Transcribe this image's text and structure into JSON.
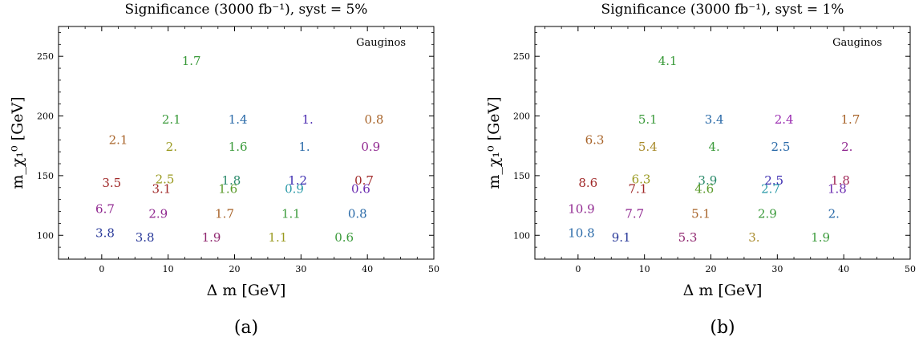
{
  "chart_data": [
    {
      "type": "scatter",
      "title": "Significance (3000 fb⁻¹), syst = 5%",
      "xlabel": "Δ m [GeV]",
      "ylabel": "m_χ₁⁰ [GeV]",
      "annotation": "Gauginos",
      "caption": "(a)",
      "xlim": [
        -6.5,
        50
      ],
      "ylim": [
        80,
        275
      ],
      "xticks": [
        "0",
        "10",
        "20",
        "30",
        "40",
        "50"
      ],
      "yticks": [
        "100",
        "150",
        "200",
        "250"
      ],
      "grid": false,
      "points": [
        {
          "x": 13.5,
          "y": 246,
          "label": "1.7",
          "color": "#3a9a3a"
        },
        {
          "x": 2.5,
          "y": 180,
          "label": "2.1",
          "color": "#a8642a"
        },
        {
          "x": 1.5,
          "y": 144,
          "label": "3.5",
          "color": "#a02828"
        },
        {
          "x": 0.5,
          "y": 122,
          "label": "6.7",
          "color": "#902890"
        },
        {
          "x": 0.5,
          "y": 102,
          "label": "3.8",
          "color": "#2a3a9a"
        },
        {
          "x": 10.5,
          "y": 197,
          "label": "2.1",
          "color": "#3a9a3a"
        },
        {
          "x": 10.5,
          "y": 174,
          "label": "2.",
          "color": "#9a9a20"
        },
        {
          "x": 9.5,
          "y": 147,
          "label": "2.5",
          "color": "#9a9a20"
        },
        {
          "x": 9.0,
          "y": 139,
          "label": "3.1",
          "color": "#a02828"
        },
        {
          "x": 8.5,
          "y": 118,
          "label": "2.9",
          "color": "#902890"
        },
        {
          "x": 6.5,
          "y": 98,
          "label": "3.8",
          "color": "#2a3a9a"
        },
        {
          "x": 20.5,
          "y": 197,
          "label": "1.4",
          "color": "#2a6aa8"
        },
        {
          "x": 20.5,
          "y": 174,
          "label": "1.6",
          "color": "#3a9a3a"
        },
        {
          "x": 19.5,
          "y": 146,
          "label": "1.8",
          "color": "#2a8a6a"
        },
        {
          "x": 19.0,
          "y": 139,
          "label": "1.6",
          "color": "#5a9a2a"
        },
        {
          "x": 18.5,
          "y": 118,
          "label": "1.7",
          "color": "#a8642a"
        },
        {
          "x": 16.5,
          "y": 98,
          "label": "1.9",
          "color": "#902870"
        },
        {
          "x": 31.0,
          "y": 197,
          "label": "1.",
          "color": "#4a2ab0"
        },
        {
          "x": 30.5,
          "y": 174,
          "label": "1.",
          "color": "#2a6aa8"
        },
        {
          "x": 29.5,
          "y": 146,
          "label": "1.2",
          "color": "#3a2ab0"
        },
        {
          "x": 29.0,
          "y": 139,
          "label": "0.9",
          "color": "#2a9aa8"
        },
        {
          "x": 28.5,
          "y": 118,
          "label": "1.1",
          "color": "#3a9a3a"
        },
        {
          "x": 26.5,
          "y": 98,
          "label": "1.1",
          "color": "#9a9a20"
        },
        {
          "x": 41.0,
          "y": 197,
          "label": "0.8",
          "color": "#a8642a"
        },
        {
          "x": 40.5,
          "y": 174,
          "label": "0.9",
          "color": "#902890"
        },
        {
          "x": 39.5,
          "y": 146,
          "label": "0.7",
          "color": "#a02828"
        },
        {
          "x": 39.0,
          "y": 139,
          "label": "0.6",
          "color": "#6a2ab0"
        },
        {
          "x": 38.5,
          "y": 118,
          "label": "0.8",
          "color": "#2a6aa8"
        },
        {
          "x": 36.5,
          "y": 98,
          "label": "0.6",
          "color": "#3a9a3a"
        }
      ]
    },
    {
      "type": "scatter",
      "title": "Significance (3000 fb⁻¹), syst = 1%",
      "xlabel": "Δ m [GeV]",
      "ylabel": "m_χ₁⁰ [GeV]",
      "annotation": "Gauginos",
      "caption": "(b)",
      "xlim": [
        -6.5,
        50
      ],
      "ylim": [
        80,
        275
      ],
      "xticks": [
        "0",
        "10",
        "20",
        "30",
        "40",
        "50"
      ],
      "yticks": [
        "100",
        "150",
        "200",
        "250"
      ],
      "grid": false,
      "points": [
        {
          "x": 13.5,
          "y": 246,
          "label": "4.1",
          "color": "#3a9a3a"
        },
        {
          "x": 2.5,
          "y": 180,
          "label": "6.3",
          "color": "#a8642a"
        },
        {
          "x": 1.5,
          "y": 144,
          "label": "8.6",
          "color": "#a02828"
        },
        {
          "x": 0.5,
          "y": 122,
          "label": "10.9",
          "color": "#902890"
        },
        {
          "x": 0.5,
          "y": 102,
          "label": "10.8",
          "color": "#2a6aa8"
        },
        {
          "x": 10.5,
          "y": 197,
          "label": "5.1",
          "color": "#3a9a3a"
        },
        {
          "x": 10.5,
          "y": 174,
          "label": "5.4",
          "color": "#a88a2a"
        },
        {
          "x": 9.5,
          "y": 147,
          "label": "6.3",
          "color": "#9a9a20"
        },
        {
          "x": 9.0,
          "y": 139,
          "label": "7.1",
          "color": "#a02828"
        },
        {
          "x": 8.5,
          "y": 118,
          "label": "7.7",
          "color": "#902890"
        },
        {
          "x": 6.5,
          "y": 98,
          "label": "9.1",
          "color": "#2a3a9a"
        },
        {
          "x": 20.5,
          "y": 197,
          "label": "3.4",
          "color": "#2a6aa8"
        },
        {
          "x": 20.5,
          "y": 174,
          "label": "4.",
          "color": "#3a9a3a"
        },
        {
          "x": 19.5,
          "y": 146,
          "label": "3.9",
          "color": "#2a8a6a"
        },
        {
          "x": 19.0,
          "y": 139,
          "label": "4.6",
          "color": "#5a9a2a"
        },
        {
          "x": 18.5,
          "y": 118,
          "label": "5.1",
          "color": "#a8642a"
        },
        {
          "x": 16.5,
          "y": 98,
          "label": "5.3",
          "color": "#902870"
        },
        {
          "x": 31.0,
          "y": 197,
          "label": "2.4",
          "color": "#9a2ab0"
        },
        {
          "x": 30.5,
          "y": 174,
          "label": "2.5",
          "color": "#2a6aa8"
        },
        {
          "x": 29.5,
          "y": 146,
          "label": "2.5",
          "color": "#3a2ab0"
        },
        {
          "x": 29.0,
          "y": 139,
          "label": "2.7",
          "color": "#2a9aa8"
        },
        {
          "x": 28.5,
          "y": 118,
          "label": "2.9",
          "color": "#3a9a3a"
        },
        {
          "x": 26.5,
          "y": 98,
          "label": "3.",
          "color": "#a88a2a"
        },
        {
          "x": 41.0,
          "y": 197,
          "label": "1.7",
          "color": "#a8642a"
        },
        {
          "x": 40.5,
          "y": 174,
          "label": "2.",
          "color": "#902890"
        },
        {
          "x": 39.5,
          "y": 146,
          "label": "1.8",
          "color": "#a02858"
        },
        {
          "x": 39.0,
          "y": 139,
          "label": "1.8",
          "color": "#6a2ab0"
        },
        {
          "x": 38.5,
          "y": 118,
          "label": "2.",
          "color": "#2a6aa8"
        },
        {
          "x": 36.5,
          "y": 98,
          "label": "1.9",
          "color": "#3a9a3a"
        }
      ]
    }
  ]
}
